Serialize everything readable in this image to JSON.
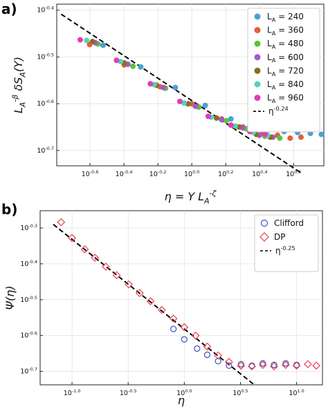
{
  "chart_data": [
    {
      "panel_label": "a)",
      "type": "scatter",
      "xscale": "log",
      "yscale": "log",
      "xlim": [
        0.16,
        6.0
      ],
      "ylim": [
        0.185,
        0.41
      ],
      "xticks": [
        {
          "value": 0.2512,
          "label": "10^{-0.6}"
        },
        {
          "value": 0.3981,
          "label": "10^{-0.4}"
        },
        {
          "value": 0.631,
          "label": "10^{-0.2}"
        },
        {
          "value": 1.0,
          "label": "10^{0.0}"
        },
        {
          "value": 1.585,
          "label": "10^{0.2}"
        },
        {
          "value": 2.512,
          "label": "10^{0.4}"
        },
        {
          "value": 3.981,
          "label": "10^{0.6}"
        }
      ],
      "yticks": [
        {
          "value": 0.1995,
          "label": "10^{-0.7}"
        },
        {
          "value": 0.2512,
          "label": "10^{-0.6}"
        },
        {
          "value": 0.3162,
          "label": "10^{-0.5}"
        },
        {
          "value": 0.3981,
          "label": "10^{-0.4}"
        }
      ],
      "xlabel": "η = Y L_A^{-ζ}",
      "ylabel": "L_A^{-β} δS_A(Y)",
      "grid": true,
      "legend_position": "top-right",
      "series": [
        {
          "name": "L_A = 240",
          "color": "#4c9fd6",
          "x": [
            0.3,
            0.5,
            0.8,
            1.2,
            1.7,
            2.2,
            2.8,
            3.5,
            4.2,
            5.0,
            5.8
          ],
          "y": [
            0.335,
            0.301,
            0.272,
            0.249,
            0.233,
            0.225,
            0.221,
            0.219,
            0.218,
            0.217,
            0.216
          ]
        },
        {
          "name": "L_A = 360",
          "color": "#e0613a",
          "x": [
            0.25,
            0.4,
            0.65,
            1.0,
            1.5,
            2.0,
            2.6,
            3.2,
            3.8,
            4.4
          ],
          "y": [
            0.336,
            0.304,
            0.273,
            0.251,
            0.233,
            0.224,
            0.217,
            0.215,
            0.212,
            0.213
          ]
        },
        {
          "name": "L_A = 480",
          "color": "#5cc43a",
          "x": [
            0.28,
            0.45,
            0.7,
            1.1,
            1.6,
            2.1,
            2.7,
            3.3
          ],
          "y": [
            0.337,
            0.302,
            0.271,
            0.247,
            0.231,
            0.222,
            0.214,
            0.212
          ]
        },
        {
          "name": "L_A = 600",
          "color": "#a559c9",
          "x": [
            0.27,
            0.42,
            0.68,
            1.05,
            1.5,
            2.0,
            2.5,
            3.0
          ],
          "y": [
            0.339,
            0.305,
            0.272,
            0.248,
            0.232,
            0.223,
            0.215,
            0.213
          ]
        },
        {
          "name": "L_A = 720",
          "color": "#8a6d1e",
          "x": [
            0.26,
            0.4,
            0.62,
            0.95,
            1.4,
            1.9,
            2.4,
            2.9
          ],
          "y": [
            0.341,
            0.307,
            0.275,
            0.251,
            0.234,
            0.224,
            0.216,
            0.213
          ]
        },
        {
          "name": "L_A = 840",
          "color": "#55d1c0",
          "x": [
            0.24,
            0.38,
            0.6,
            0.9,
            1.3,
            1.8,
            2.3,
            2.8
          ],
          "y": [
            0.343,
            0.309,
            0.276,
            0.252,
            0.235,
            0.225,
            0.218,
            0.215
          ]
        },
        {
          "name": "L_A = 960",
          "color": "#e23cb4",
          "x": [
            0.22,
            0.36,
            0.57,
            0.85,
            1.25,
            1.7,
            2.2,
            2.7
          ],
          "y": [
            0.344,
            0.311,
            0.277,
            0.254,
            0.236,
            0.226,
            0.219,
            0.216
          ]
        }
      ],
      "fit_line": {
        "label": "η^{-0.24}",
        "exponent": -0.24,
        "prefactor": 0.255,
        "x_range": [
          0.17,
          4.4
        ],
        "style": "dashed",
        "color": "#000000"
      }
    },
    {
      "panel_label": "b)",
      "type": "scatter",
      "xscale": "log",
      "yscale": "log",
      "xlim": [
        0.052,
        17.0
      ],
      "ylim": [
        0.183,
        0.56
      ],
      "xticks": [
        {
          "value": 0.1,
          "label": "10^{-1.0}"
        },
        {
          "value": 0.3162,
          "label": "10^{-0.5}"
        },
        {
          "value": 1.0,
          "label": "10^{0.0}"
        },
        {
          "value": 3.162,
          "label": "10^{0.5}"
        },
        {
          "value": 10.0,
          "label": "10^{1.0}"
        }
      ],
      "yticks": [
        {
          "value": 0.1995,
          "label": "10^{-0.7}"
        },
        {
          "value": 0.2512,
          "label": "10^{-0.6}"
        },
        {
          "value": 0.3162,
          "label": "10^{-0.5}"
        },
        {
          "value": 0.3981,
          "label": "10^{-0.4}"
        },
        {
          "value": 0.5012,
          "label": "10^{-0.3}"
        }
      ],
      "xlabel": "η",
      "ylabel": "Ψ(η)",
      "grid": true,
      "legend_position": "top-right",
      "series": [
        {
          "name": "Clifford",
          "marker": "circle-open",
          "color": "#3b4fc4",
          "x": [
            0.8,
            1.0,
            1.3,
            1.6,
            2.0,
            2.5,
            3.2,
            4.0,
            5.0,
            6.3,
            8.0,
            10.0
          ],
          "y": [
            0.262,
            0.245,
            0.231,
            0.222,
            0.213,
            0.207,
            0.209,
            0.207,
            0.21,
            0.208,
            0.21,
            0.208
          ]
        },
        {
          "name": "DP",
          "marker": "diamond-open",
          "color": "#e8404f",
          "x": [
            0.08,
            0.1,
            0.13,
            0.16,
            0.2,
            0.25,
            0.32,
            0.4,
            0.5,
            0.63,
            0.8,
            1.0,
            1.26,
            1.6,
            2.0,
            2.5,
            3.2,
            4.0,
            5.0,
            6.3,
            8.0,
            10.0,
            12.6,
            15.0
          ],
          "y": [
            0.52,
            0.47,
            0.437,
            0.414,
            0.391,
            0.37,
            0.349,
            0.33,
            0.313,
            0.296,
            0.28,
            0.265,
            0.251,
            0.234,
            0.221,
            0.212,
            0.207,
            0.206,
            0.208,
            0.206,
            0.208,
            0.207,
            0.209,
            0.207
          ]
        }
      ],
      "fit_line": {
        "label": "η^{-0.25}",
        "exponent": -0.25,
        "prefactor": 0.262,
        "x_range": [
          0.068,
          4.1
        ],
        "style": "dashed",
        "color": "#000000"
      }
    }
  ]
}
